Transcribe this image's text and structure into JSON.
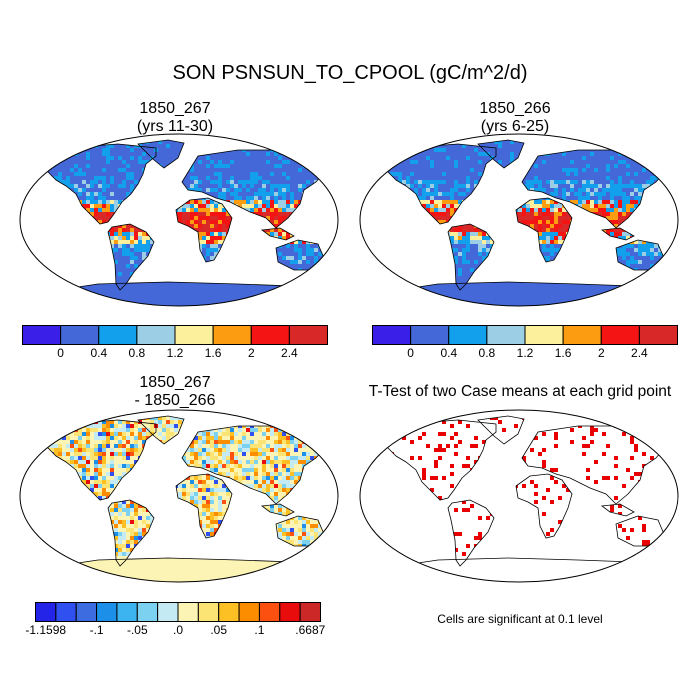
{
  "title": "SON PSNSUN_TO_CPOOL (gC/m^2/d)",
  "panels": [
    {
      "id": "case1",
      "title_lines": [
        "1850_267",
        "(yrs 11-30)"
      ]
    },
    {
      "id": "case2",
      "title_lines": [
        "1850_266",
        "(yrs 6-25)"
      ]
    },
    {
      "id": "diff",
      "title_lines": [
        "1850_267",
        "- 1850_266"
      ]
    },
    {
      "id": "ttest",
      "title_lines": [
        "T-Test of two Case means at each grid point"
      ]
    }
  ],
  "colorbars": {
    "field": {
      "colors": [
        "#3a1fe8",
        "#4468d8",
        "#12a0ec",
        "#9ccfe6",
        "#fcf09c",
        "#fc9c10",
        "#f41414",
        "#d82828"
      ],
      "tick_labels": [
        "0",
        "0.4",
        "0.8",
        "1.2",
        "1.6",
        "2",
        "2.4"
      ]
    },
    "difference": {
      "colors": [
        "#2424e8",
        "#3050f0",
        "#3c6ce0",
        "#1c90e8",
        "#3cb4f0",
        "#7cd0f0",
        "#c4eaf4",
        "#fcf4b4",
        "#fce474",
        "#fcc024",
        "#fc8c00",
        "#fc5010",
        "#e80c0c",
        "#cc2828"
      ],
      "tick_labels": [
        "-1.1598",
        "-.1",
        "-.05",
        ".0",
        ".05",
        ".1",
        ".6687"
      ]
    }
  },
  "significance_note": "Cells are significant at 0.1 level"
}
